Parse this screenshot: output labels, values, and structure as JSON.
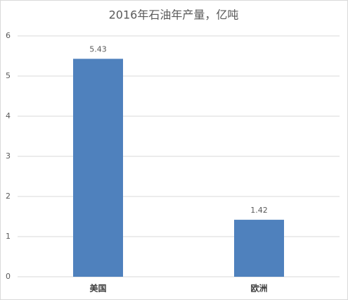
{
  "chart_data": {
    "type": "bar",
    "title": "2016年石油年产量，亿吨",
    "categories": [
      "美国",
      "欧洲"
    ],
    "values": [
      5.43,
      1.42
    ],
    "color": "#4f81bd",
    "ylim": [
      0,
      6
    ],
    "yticks": [
      0,
      1,
      2,
      3,
      4,
      5,
      6
    ],
    "grid": true,
    "data_labels": true
  }
}
